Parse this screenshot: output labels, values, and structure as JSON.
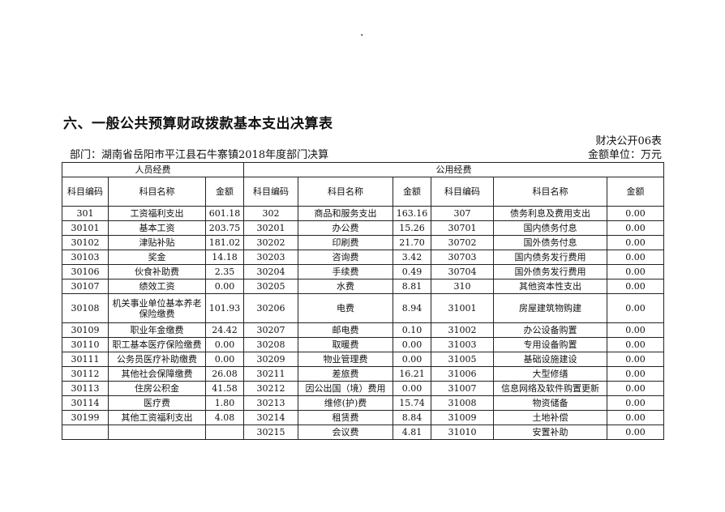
{
  "top_mark": ".",
  "title": "六、一般公共预算财政拨款基本支出决算表",
  "form_no": "财决公开06表",
  "department": "部门：湖南省岳阳市平江县石牛寨镇2018年度部门决算",
  "unit": "金额单位：万元",
  "groups": [
    "人员经费",
    "公用经费"
  ],
  "columns": [
    "科目编码",
    "科目名称",
    "金额",
    "科目编码",
    "科目名称",
    "金额",
    "科目编码",
    "科目名称",
    "金额"
  ],
  "rows": [
    [
      "301",
      "工资福利支出",
      "601.18",
      "302",
      "商品和服务支出",
      "163.16",
      "307",
      "债务利息及费用支出",
      "0.00"
    ],
    [
      "30101",
      "基本工资",
      "203.75",
      "30201",
      "办公费",
      "15.26",
      "30701",
      "国内债务付息",
      "0.00"
    ],
    [
      "30102",
      "津贴补贴",
      "181.02",
      "30202",
      "印刷费",
      "21.70",
      "30702",
      "国外债务付息",
      "0.00"
    ],
    [
      "30103",
      "奖金",
      "14.18",
      "30203",
      "咨询费",
      "3.42",
      "30703",
      "国内债务发行费用",
      "0.00"
    ],
    [
      "30106",
      "伙食补助费",
      "2.35",
      "30204",
      "手续费",
      "0.49",
      "30704",
      "国外债务发行费用",
      "0.00"
    ],
    [
      "30107",
      "绩效工资",
      "0.00",
      "30205",
      "水费",
      "8.81",
      "310",
      "其他资本性支出",
      "0.00"
    ],
    [
      "30108",
      "机关事业单位基本养老保险缴费",
      "101.93",
      "30206",
      "电费",
      "8.94",
      "31001",
      "房屋建筑物购建",
      "0.00"
    ],
    [
      "30109",
      "职业年金缴费",
      "24.42",
      "30207",
      "邮电费",
      "0.10",
      "31002",
      "办公设备购置",
      "0.00"
    ],
    [
      "30110",
      "职工基本医疗保险缴费",
      "0.00",
      "30208",
      "取暖费",
      "0.00",
      "31003",
      "专用设备购置",
      "0.00"
    ],
    [
      "30111",
      "公务员医疗补助缴费",
      "0.00",
      "30209",
      "物业管理费",
      "0.00",
      "31005",
      "基础设施建设",
      "0.00"
    ],
    [
      "30112",
      "其他社会保障缴费",
      "26.08",
      "30211",
      "差旅费",
      "16.21",
      "31006",
      "大型修缮",
      "0.00"
    ],
    [
      "30113",
      "住房公积金",
      "41.58",
      "30212",
      "因公出国（境）费用",
      "0.00",
      "31007",
      "信息网络及软件购置更新",
      "0.00"
    ],
    [
      "30114",
      "医疗费",
      "1.80",
      "30213",
      "维修(护)费",
      "15.74",
      "31008",
      "物资储备",
      "0.00"
    ],
    [
      "30199",
      "其他工资福利支出",
      "4.08",
      "30214",
      "租赁费",
      "8.84",
      "31009",
      "土地补偿",
      "0.00"
    ],
    [
      "",
      "",
      "",
      "30215",
      "会议费",
      "4.81",
      "31010",
      "安置补助",
      "0.00"
    ]
  ]
}
